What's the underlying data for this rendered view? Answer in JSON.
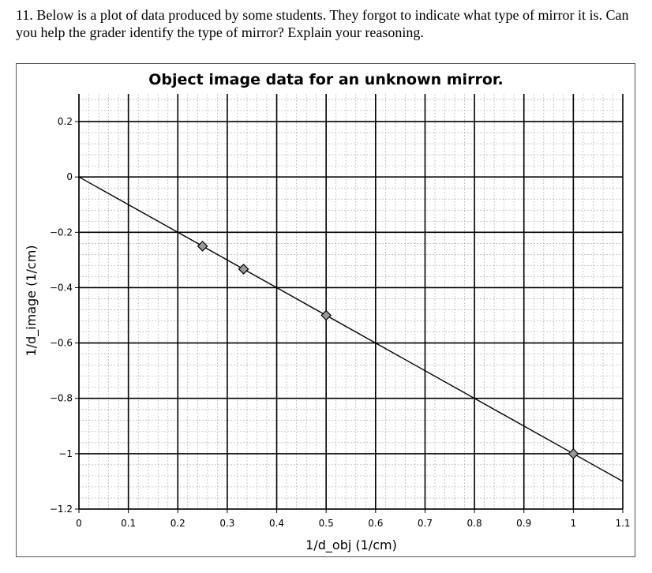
{
  "question": {
    "text": "11.  Below is a plot of data produced by some students.  They forgot to indicate what type of mirror it is.  Can you help the grader identify the type of mirror?  Explain your reasoning."
  },
  "chart_data": {
    "type": "scatter",
    "title": "Object image data for an unknown mirror.",
    "xlabel": "1/d_obj (1/cm)",
    "ylabel": "1/d_image (1/cm)",
    "xlim": [
      0,
      1.1
    ],
    "ylim": [
      -1.2,
      0.3
    ],
    "xticks": [
      0,
      0.1,
      0.2,
      0.3,
      0.4,
      0.5,
      0.6,
      0.7,
      0.8,
      0.9,
      1,
      1.1
    ],
    "xtick_labels": [
      "0",
      "0.1",
      "0.2",
      "0.3",
      "0.4",
      "0.5",
      "0.6",
      "0.7",
      "0.8",
      "0.9",
      "1",
      "1.1"
    ],
    "yticks": [
      0.2,
      0,
      -0.2,
      -0.4,
      -0.6,
      -0.8,
      -1,
      -1.2
    ],
    "ytick_labels": [
      "0.2",
      "0",
      "−0.2",
      "−0.4",
      "−0.6",
      "−0.8",
      "−1",
      "−1.2"
    ],
    "grid": "major and minor",
    "series": [
      {
        "marker": "diamond",
        "x": [
          0.25,
          0.333,
          0.5,
          1.0
        ],
        "y": [
          -0.25,
          -0.333,
          -0.5,
          -1.0
        ]
      }
    ],
    "fit_line": {
      "x": [
        0,
        1.1
      ],
      "y": [
        0,
        -1.1
      ]
    },
    "colors": {
      "marker_fill": "#999999",
      "line": "#000000",
      "grid_major": "#000000",
      "grid_minor": "#b0b0b0"
    }
  }
}
